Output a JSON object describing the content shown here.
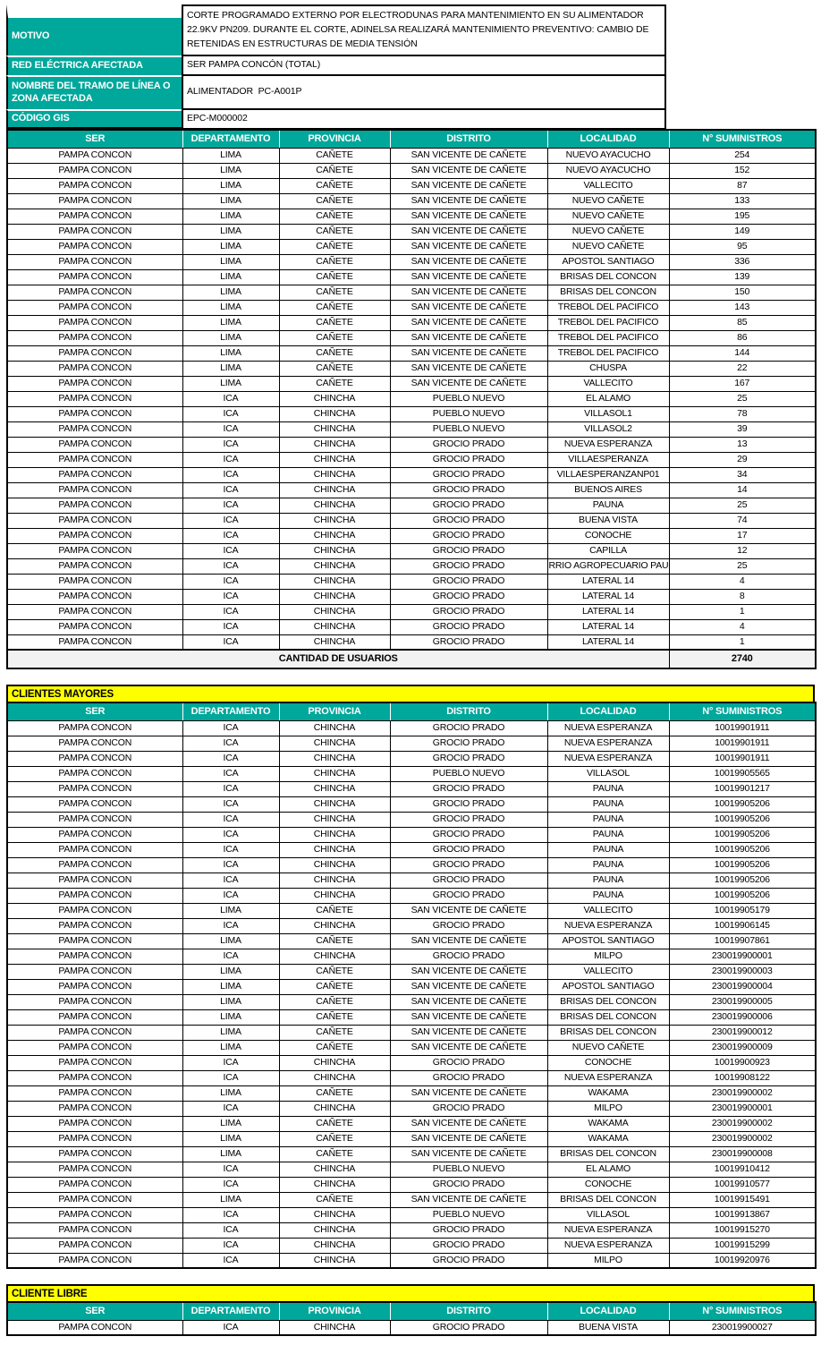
{
  "colors": {
    "teal": "#00A79B",
    "banner_yellow": "#FFFF00",
    "total_row_bg": "#F2F2F2"
  },
  "info": {
    "motivo_label": "MOTIVO",
    "motivo_value": "CORTE PROGRAMADO EXTERNO POR ELECTRODUNAS PARA MANTENIMIENTO EN SU ALIMENTADOR 22.9KV PN209. DURANTE EL CORTE, ADINELSA REALIZARÁ MANTENIMIENTO PREVENTIVO: CAMBIO DE RETENIDAS EN ESTRUCTURAS DE MEDIA TENSIÓN",
    "red_label": "RED ELÉCTRICA AFECTADA",
    "red_value": "SER PAMPA CONCÓN (TOTAL)",
    "tramo_label": "NOMBRE DEL TRAMO DE LÍNEA O ZONA AFECTADA",
    "tramo_value": "ALIMENTADOR  PC-A001P",
    "gis_label": "CÓDIGO GIS",
    "gis_value": "EPC-M000002"
  },
  "columns": [
    "SER",
    "DEPARTAMENTO",
    "PROVINCIA",
    "DISTRITO",
    "LOCALIDAD",
    "N° SUMINISTROS"
  ],
  "main_table": {
    "total_label": "CANTIDAD DE USUARIOS",
    "total_value": "2740",
    "rows": [
      [
        "PAMPA CONCON",
        "LIMA",
        "CAÑETE",
        "SAN VICENTE DE CAÑETE",
        "NUEVO AYACUCHO",
        "254"
      ],
      [
        "PAMPA CONCON",
        "LIMA",
        "CAÑETE",
        "SAN VICENTE DE CAÑETE",
        "NUEVO AYACUCHO",
        "152"
      ],
      [
        "PAMPA CONCON",
        "LIMA",
        "CAÑETE",
        "SAN VICENTE DE CAÑETE",
        "VALLECITO",
        "87"
      ],
      [
        "PAMPA CONCON",
        "LIMA",
        "CAÑETE",
        "SAN VICENTE DE CAÑETE",
        "NUEVO CAÑETE",
        "133"
      ],
      [
        "PAMPA CONCON",
        "LIMA",
        "CAÑETE",
        "SAN VICENTE DE CAÑETE",
        "NUEVO CAÑETE",
        "195"
      ],
      [
        "PAMPA CONCON",
        "LIMA",
        "CAÑETE",
        "SAN VICENTE DE CAÑETE",
        "NUEVO CAÑETE",
        "149"
      ],
      [
        "PAMPA CONCON",
        "LIMA",
        "CAÑETE",
        "SAN VICENTE DE CAÑETE",
        "NUEVO CAÑETE",
        "95"
      ],
      [
        "PAMPA CONCON",
        "LIMA",
        "CAÑETE",
        "SAN VICENTE DE CAÑETE",
        "APOSTOL SANTIAGO",
        "336"
      ],
      [
        "PAMPA CONCON",
        "LIMA",
        "CAÑETE",
        "SAN VICENTE DE CAÑETE",
        "BRISAS DEL CONCON",
        "139"
      ],
      [
        "PAMPA CONCON",
        "LIMA",
        "CAÑETE",
        "SAN VICENTE DE CAÑETE",
        "BRISAS DEL CONCON",
        "150"
      ],
      [
        "PAMPA CONCON",
        "LIMA",
        "CAÑETE",
        "SAN VICENTE DE CAÑETE",
        "TREBOL DEL PACIFICO",
        "143"
      ],
      [
        "PAMPA CONCON",
        "LIMA",
        "CAÑETE",
        "SAN VICENTE DE CAÑETE",
        "TREBOL DEL PACIFICO",
        "85"
      ],
      [
        "PAMPA CONCON",
        "LIMA",
        "CAÑETE",
        "SAN VICENTE DE CAÑETE",
        "TREBOL DEL PACIFICO",
        "86"
      ],
      [
        "PAMPA CONCON",
        "LIMA",
        "CAÑETE",
        "SAN VICENTE DE CAÑETE",
        "TREBOL DEL PACIFICO",
        "144"
      ],
      [
        "PAMPA CONCON",
        "LIMA",
        "CAÑETE",
        "SAN VICENTE DE CAÑETE",
        "CHUSPA",
        "22"
      ],
      [
        "PAMPA CONCON",
        "LIMA",
        "CAÑETE",
        "SAN VICENTE DE CAÑETE",
        "VALLECITO",
        "167"
      ],
      [
        "PAMPA CONCON",
        "ICA",
        "CHINCHA",
        "PUEBLO NUEVO",
        "EL ALAMO",
        "25"
      ],
      [
        "PAMPA CONCON",
        "ICA",
        "CHINCHA",
        "PUEBLO NUEVO",
        "VILLASOL1",
        "78"
      ],
      [
        "PAMPA CONCON",
        "ICA",
        "CHINCHA",
        "PUEBLO NUEVO",
        "VILLASOL2",
        "39"
      ],
      [
        "PAMPA CONCON",
        "ICA",
        "CHINCHA",
        "GROCIO PRADO",
        "NUEVA ESPERANZA",
        "13"
      ],
      [
        "PAMPA CONCON",
        "ICA",
        "CHINCHA",
        "GROCIO PRADO",
        "VILLAESPERANZA",
        "29"
      ],
      [
        "PAMPA CONCON",
        "ICA",
        "CHINCHA",
        "GROCIO PRADO",
        "VILLAESPERANZANP01",
        "34"
      ],
      [
        "PAMPA CONCON",
        "ICA",
        "CHINCHA",
        "GROCIO PRADO",
        "BUENOS AIRES",
        "14"
      ],
      [
        "PAMPA CONCON",
        "ICA",
        "CHINCHA",
        "GROCIO PRADO",
        "PAUNA",
        "25"
      ],
      [
        "PAMPA CONCON",
        "ICA",
        "CHINCHA",
        "GROCIO PRADO",
        "BUENA VISTA",
        "74"
      ],
      [
        "PAMPA CONCON",
        "ICA",
        "CHINCHA",
        "GROCIO PRADO",
        "CONOCHE",
        "17"
      ],
      [
        "PAMPA CONCON",
        "ICA",
        "CHINCHA",
        "GROCIO PRADO",
        "CAPILLA",
        "12"
      ],
      [
        "PAMPA CONCON",
        "ICA",
        "CHINCHA",
        "GROCIO PRADO",
        "RRIO AGROPECUARIO PAUC",
        "25"
      ],
      [
        "PAMPA CONCON",
        "ICA",
        "CHINCHA",
        "GROCIO PRADO",
        "LATERAL 14",
        "4"
      ],
      [
        "PAMPA CONCON",
        "ICA",
        "CHINCHA",
        "GROCIO PRADO",
        "LATERAL 14",
        "8"
      ],
      [
        "PAMPA CONCON",
        "ICA",
        "CHINCHA",
        "GROCIO PRADO",
        "LATERAL 14",
        "1"
      ],
      [
        "PAMPA CONCON",
        "ICA",
        "CHINCHA",
        "GROCIO PRADO",
        "LATERAL 14",
        "4"
      ],
      [
        "PAMPA CONCON",
        "ICA",
        "CHINCHA",
        "GROCIO PRADO",
        "LATERAL 14",
        "1"
      ]
    ]
  },
  "clientes_mayores": {
    "title": "CLIENTES MAYORES",
    "rows": [
      [
        "PAMPA CONCON",
        "ICA",
        "CHINCHA",
        "GROCIO PRADO",
        "NUEVA ESPERANZA",
        "10019901911"
      ],
      [
        "PAMPA CONCON",
        "ICA",
        "CHINCHA",
        "GROCIO PRADO",
        "NUEVA ESPERANZA",
        "10019901911"
      ],
      [
        "PAMPA CONCON",
        "ICA",
        "CHINCHA",
        "GROCIO PRADO",
        "NUEVA ESPERANZA",
        "10019901911"
      ],
      [
        "PAMPA CONCON",
        "ICA",
        "CHINCHA",
        "PUEBLO NUEVO",
        "VILLASOL",
        "10019905565"
      ],
      [
        "PAMPA CONCON",
        "ICA",
        "CHINCHA",
        "GROCIO PRADO",
        "PAUNA",
        "10019901217"
      ],
      [
        "PAMPA CONCON",
        "ICA",
        "CHINCHA",
        "GROCIO PRADO",
        "PAUNA",
        "10019905206"
      ],
      [
        "PAMPA CONCON",
        "ICA",
        "CHINCHA",
        "GROCIO PRADO",
        "PAUNA",
        "10019905206"
      ],
      [
        "PAMPA CONCON",
        "ICA",
        "CHINCHA",
        "GROCIO PRADO",
        "PAUNA",
        "10019905206"
      ],
      [
        "PAMPA CONCON",
        "ICA",
        "CHINCHA",
        "GROCIO PRADO",
        "PAUNA",
        "10019905206"
      ],
      [
        "PAMPA CONCON",
        "ICA",
        "CHINCHA",
        "GROCIO PRADO",
        "PAUNA",
        "10019905206"
      ],
      [
        "PAMPA CONCON",
        "ICA",
        "CHINCHA",
        "GROCIO PRADO",
        "PAUNA",
        "10019905206"
      ],
      [
        "PAMPA CONCON",
        "ICA",
        "CHINCHA",
        "GROCIO PRADO",
        "PAUNA",
        "10019905206"
      ],
      [
        "PAMPA CONCON",
        "LIMA",
        "CAÑETE",
        "SAN VICENTE DE CAÑETE",
        "VALLECITO",
        "10019905179"
      ],
      [
        "PAMPA CONCON",
        "ICA",
        "CHINCHA",
        "GROCIO PRADO",
        "NUEVA ESPERANZA",
        "10019906145"
      ],
      [
        "PAMPA CONCON",
        "LIMA",
        "CAÑETE",
        "SAN VICENTE DE CAÑETE",
        "APOSTOL SANTIAGO",
        "10019907861"
      ],
      [
        "PAMPA CONCON",
        "ICA",
        "CHINCHA",
        "GROCIO PRADO",
        "MILPO",
        "230019900001"
      ],
      [
        "PAMPA CONCON",
        "LIMA",
        "CAÑETE",
        "SAN VICENTE DE CAÑETE",
        "VALLECITO",
        "230019900003"
      ],
      [
        "PAMPA CONCON",
        "LIMA",
        "CAÑETE",
        "SAN VICENTE DE CAÑETE",
        "APOSTOL SANTIAGO",
        "230019900004"
      ],
      [
        "PAMPA CONCON",
        "LIMA",
        "CAÑETE",
        "SAN VICENTE DE CAÑETE",
        "BRISAS DEL CONCON",
        "230019900005"
      ],
      [
        "PAMPA CONCON",
        "LIMA",
        "CAÑETE",
        "SAN VICENTE DE CAÑETE",
        "BRISAS DEL CONCON",
        "230019900006"
      ],
      [
        "PAMPA CONCON",
        "LIMA",
        "CAÑETE",
        "SAN VICENTE DE CAÑETE",
        "BRISAS DEL CONCON",
        "230019900012"
      ],
      [
        "PAMPA CONCON",
        "LIMA",
        "CAÑETE",
        "SAN VICENTE DE CAÑETE",
        "NUEVO CAÑETE",
        "230019900009"
      ],
      [
        "PAMPA CONCON",
        "ICA",
        "CHINCHA",
        "GROCIO PRADO",
        "CONOCHE",
        "10019900923"
      ],
      [
        "PAMPA CONCON",
        "ICA",
        "CHINCHA",
        "GROCIO PRADO",
        "NUEVA ESPERANZA",
        "10019908122"
      ],
      [
        "PAMPA CONCON",
        "LIMA",
        "CAÑETE",
        "SAN VICENTE DE CAÑETE",
        "WAKAMA",
        "230019900002"
      ],
      [
        "PAMPA CONCON",
        "ICA",
        "CHINCHA",
        "GROCIO PRADO",
        "MILPO",
        "230019900001"
      ],
      [
        "PAMPA CONCON",
        "LIMA",
        "CAÑETE",
        "SAN VICENTE DE CAÑETE",
        "WAKAMA",
        "230019900002"
      ],
      [
        "PAMPA CONCON",
        "LIMA",
        "CAÑETE",
        "SAN VICENTE DE CAÑETE",
        "WAKAMA",
        "230019900002"
      ],
      [
        "PAMPA CONCON",
        "LIMA",
        "CAÑETE",
        "SAN VICENTE DE CAÑETE",
        "BRISAS DEL CONCON",
        "230019900008"
      ],
      [
        "PAMPA CONCON",
        "ICA",
        "CHINCHA",
        "PUEBLO NUEVO",
        "EL ALAMO",
        "10019910412"
      ],
      [
        "PAMPA CONCON",
        "ICA",
        "CHINCHA",
        "GROCIO PRADO",
        "CONOCHE",
        "10019910577"
      ],
      [
        "PAMPA CONCON",
        "LIMA",
        "CAÑETE",
        "SAN VICENTE DE CAÑETE",
        "BRISAS DEL CONCON",
        "10019915491"
      ],
      [
        "PAMPA CONCON",
        "ICA",
        "CHINCHA",
        "PUEBLO NUEVO",
        "VILLASOL",
        "10019913867"
      ],
      [
        "PAMPA CONCON",
        "ICA",
        "CHINCHA",
        "GROCIO PRADO",
        "NUEVA ESPERANZA",
        "10019915270"
      ],
      [
        "PAMPA CONCON",
        "ICA",
        "CHINCHA",
        "GROCIO PRADO",
        "NUEVA ESPERANZA",
        "10019915299"
      ],
      [
        "PAMPA CONCON",
        "ICA",
        "CHINCHA",
        "GROCIO PRADO",
        "MILPO",
        "10019920976"
      ]
    ]
  },
  "cliente_libre": {
    "title": "CLIENTE LIBRE",
    "rows": [
      [
        "PAMPA CONCON",
        "ICA",
        "CHINCHA",
        "GROCIO PRADO",
        "BUENA VISTA",
        "230019900027"
      ]
    ]
  }
}
